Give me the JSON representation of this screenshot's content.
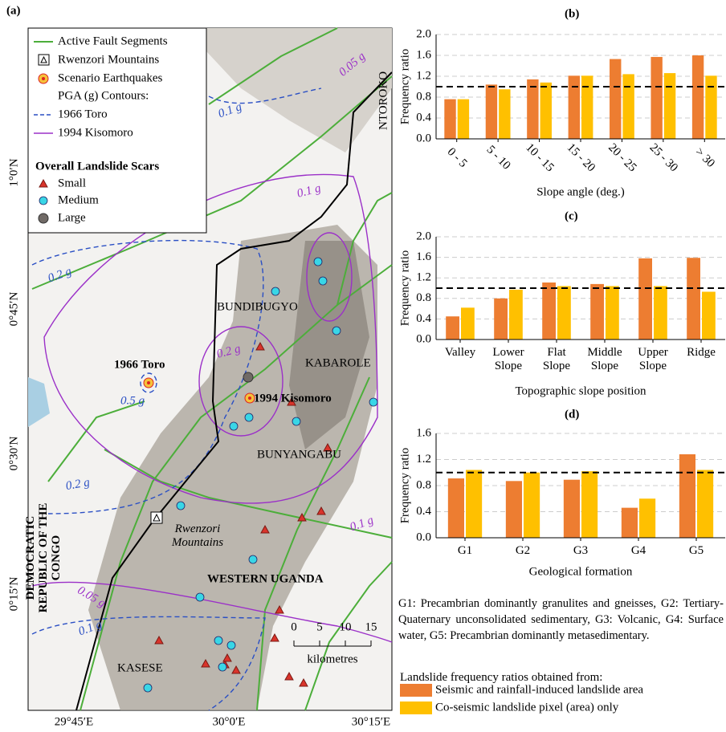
{
  "map": {
    "panel_label": "(a)",
    "legend": [
      "Active Fault Segments",
      "Rwenzori Mountains",
      "Scenario Earthquakes",
      "PGA (g) Contours:",
      "1966 Toro",
      "1994 Kisomoro",
      "Overall Landslide Scars",
      "Small",
      "Medium",
      "Large"
    ],
    "place_labels": [
      "NTOROKO",
      "BUNDIBUGYO",
      "KABAROLE",
      "BUNYANGABU",
      "DEMOCRATIC REPUBLIC OF THE CONGO",
      "WESTERN UGANDA",
      "KASESE",
      "Rwenzori Mountains",
      "1966 Toro",
      "1994 Kisomoro"
    ],
    "contour_labels": [
      "0.1 g",
      "0.05 g",
      "0.1 g",
      "0.2 g",
      "0.2 g",
      "0.5 g",
      "0.2 g",
      "0.1 g",
      "0.05 g",
      "0.1 g"
    ],
    "lon_ticks": [
      "29°45′E",
      "30°0′E",
      "30°15′E"
    ],
    "lat_ticks": [
      "1°0′N",
      "0°45′N",
      "0°30′N",
      "0°15′N"
    ],
    "scale": {
      "ticks": [
        "0",
        "5",
        "10",
        "15"
      ],
      "unit": "kilometres"
    }
  },
  "chart_data": [
    {
      "type": "bar",
      "panel_label": "(b)",
      "y_label": "Frequency ratio",
      "x_label": "Slope angle (deg.)",
      "categories": [
        "0 - 5",
        "5 - 10",
        "10 - 15",
        "15 - 20",
        "20 - 25",
        "25 - 30",
        "> 30"
      ],
      "series": [
        {
          "name": "Seismic and rainfall-induced landslide area",
          "color": "#ed7d31",
          "values": [
            0.76,
            1.04,
            1.14,
            1.21,
            1.53,
            1.57,
            1.6
          ]
        },
        {
          "name": "Co-seismic landslide pixel (area) only",
          "color": "#ffc000",
          "values": [
            0.76,
            0.95,
            1.08,
            1.21,
            1.24,
            1.26,
            1.21
          ]
        }
      ],
      "ylim": [
        0,
        2
      ],
      "yticks": [
        {
          "value": 0,
          "label": "0.0"
        },
        0.4,
        0.8,
        1.2,
        1.6,
        {
          "value": 2,
          "label": "2.0"
        }
      ],
      "grid": true,
      "reference_line": 1,
      "x_label_rotation": 45
    },
    {
      "type": "bar",
      "panel_label": "(c)",
      "y_label": "Frequency ratio",
      "x_label": "Topographic slope position",
      "categories": [
        "Valley",
        "Lower Slope",
        "Flat Slope",
        "Middle Slope",
        "Upper Slope",
        "Ridge"
      ],
      "series": [
        {
          "name": "Seismic and rainfall-induced landslide area",
          "color": "#ed7d31",
          "values": [
            0.45,
            0.8,
            1.11,
            1.08,
            1.58,
            1.59
          ]
        },
        {
          "name": "Co-seismic landslide pixel (area) only",
          "color": "#ffc000",
          "values": [
            0.62,
            0.97,
            1.04,
            1.04,
            1.04,
            0.93
          ]
        }
      ],
      "ylim": [
        0,
        2
      ],
      "yticks": [
        {
          "value": 0,
          "label": "0.0"
        },
        0.4,
        0.8,
        1.2,
        1.6,
        {
          "value": 2,
          "label": "2.0"
        }
      ],
      "grid": true,
      "reference_line": 1
    },
    {
      "type": "bar",
      "panel_label": "(d)",
      "y_label": "Frequency ratio",
      "x_label": "Geological formation",
      "categories": [
        "G1",
        "G2",
        "G3",
        "G4",
        "G5"
      ],
      "series": [
        {
          "name": "Seismic and rainfall-induced landslide area",
          "color": "#ed7d31",
          "values": [
            0.91,
            0.87,
            0.89,
            0.46,
            1.28
          ]
        },
        {
          "name": "Co-seismic landslide pixel (area) only",
          "color": "#ffc000",
          "values": [
            1.04,
            1.0,
            1.02,
            0.6,
            1.04
          ]
        }
      ],
      "ylim": [
        0,
        1.6
      ],
      "yticks": [
        {
          "value": 0,
          "label": "0.0"
        },
        0.4,
        0.8,
        1.2,
        1.6
      ],
      "grid": true,
      "reference_line": 1
    }
  ],
  "notes": {
    "geology": "G1: Precambrian dominantly granulites and gneisses, G2: Tertiary-Quaternary unconsolidated sedimentary, G3: Volcanic, G4: Surface water, G5: Precambrian dominantly metasedimentary.",
    "legend_title": "Landslide frequency ratios obtained from:"
  }
}
